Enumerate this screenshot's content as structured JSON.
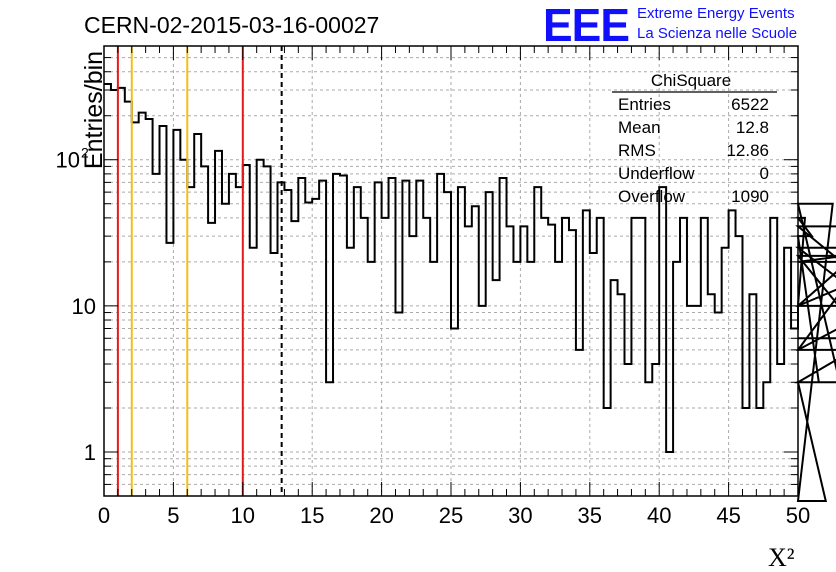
{
  "chart_data": {
    "type": "histogram",
    "title": "CERN-02-2015-03-16-00027",
    "xlabel": "X²",
    "ylabel": "Entries/bin",
    "xlim": [
      0,
      50
    ],
    "ylim": [
      0.5,
      600
    ],
    "yscale": "log",
    "grid": true,
    "x_ticks": [
      0,
      5,
      10,
      15,
      20,
      25,
      30,
      35,
      40,
      45,
      50
    ],
    "y_ticks": [
      {
        "value": 1,
        "label": "1"
      },
      {
        "value": 10,
        "label": "10"
      },
      {
        "value": 100,
        "label": "10",
        "exponent": "2"
      }
    ],
    "bin_width": 0.5,
    "bin_values": [
      330,
      300,
      310,
      250,
      180,
      210,
      190,
      80,
      170,
      27,
      160,
      100,
      65,
      150,
      90,
      37,
      115,
      50,
      80,
      65,
      92,
      25,
      100,
      90,
      23,
      70,
      62,
      38,
      75,
      51,
      54,
      72,
      3,
      80,
      78,
      25,
      65,
      40,
      20,
      70,
      40,
      75,
      9,
      72,
      30,
      72,
      40,
      20,
      80,
      60,
      7,
      65,
      35,
      48,
      10,
      60,
      15,
      75,
      35,
      20,
      35,
      20,
      65,
      40,
      36,
      20,
      40,
      33,
      5,
      45,
      23,
      40,
      2,
      15,
      12,
      4,
      40,
      40,
      3,
      4,
      65,
      1,
      20,
      40,
      10,
      10,
      40,
      12,
      9,
      25,
      45,
      30,
      2,
      12,
      2,
      3,
      40,
      4,
      25,
      7,
      10,
      40,
      30,
      3,
      0,
      50,
      3,
      3,
      5,
      5,
      22,
      5,
      10,
      35,
      10,
      20,
      25,
      6
    ],
    "vertical_lines": [
      {
        "x": 1,
        "color": "#e8191a",
        "style": "solid"
      },
      {
        "x": 2,
        "color": "#f2bf1a",
        "style": "solid"
      },
      {
        "x": 6,
        "color": "#f2bf1a",
        "style": "solid"
      },
      {
        "x": 10,
        "color": "#e8191a",
        "style": "solid"
      },
      {
        "x": 12.8,
        "color": "#000000",
        "style": "dashed"
      }
    ],
    "stats": {
      "title": "ChiSquare",
      "rows": [
        {
          "label": "Entries",
          "value": "6522"
        },
        {
          "label": "Mean",
          "value": "12.8"
        },
        {
          "label": "RMS",
          "value": "12.86"
        },
        {
          "label": "Underflow",
          "value": "0"
        },
        {
          "label": "Overflow",
          "value": "1090"
        }
      ]
    }
  },
  "logo": {
    "mark": "EEE",
    "line1": "Extreme Energy Events",
    "line2": "La Scienza nelle Scuole",
    "color": "#1010ff"
  }
}
